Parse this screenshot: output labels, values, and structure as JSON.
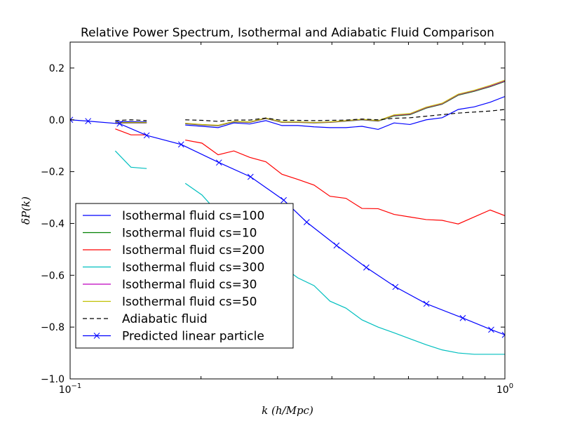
{
  "chart_data": {
    "type": "line",
    "title": "Relative Power Spectrum, Isothermal and Adiabatic Fluid Comparison",
    "xlabel": "k (h/Mpc)",
    "ylabel": "δP(k)",
    "xscale": "log",
    "xlim": [
      0.1,
      1.0
    ],
    "ylim": [
      -1.0,
      0.3
    ],
    "xticks": [
      {
        "value": 0.1,
        "base": "10",
        "exp": "−1"
      },
      {
        "value": 1.0,
        "base": "10",
        "exp": "0"
      }
    ],
    "yticks": [
      {
        "value": 0.2,
        "label": "0.2"
      },
      {
        "value": 0.0,
        "label": "0.0"
      },
      {
        "value": -0.2,
        "label": "−0.2"
      },
      {
        "value": -0.4,
        "label": "−0.4"
      },
      {
        "value": -0.6,
        "label": "−0.6"
      },
      {
        "value": -0.8,
        "label": "−0.8"
      },
      {
        "value": -1.0,
        "label": "−1.0"
      }
    ],
    "grid": false,
    "legend_position": "lower-left",
    "series": [
      {
        "name": "Isothermal fluid cs=100",
        "color": "#0000ff",
        "style": "solid",
        "marker": "none",
        "segments": [
          {
            "x": [
              0.127,
              0.138,
              0.15
            ],
            "y": [
              -0.008,
              -0.007,
              -0.008
            ]
          },
          {
            "x": [
              0.184,
              0.201,
              0.219,
              0.238,
              0.259,
              0.282,
              0.307,
              0.334,
              0.364,
              0.396,
              0.431,
              0.469,
              0.511,
              0.556,
              0.605,
              0.659,
              0.717,
              0.781,
              0.85,
              0.925,
              1.0
            ],
            "y": [
              -0.02,
              -0.025,
              -0.03,
              -0.012,
              -0.016,
              -0.003,
              -0.022,
              -0.022,
              -0.027,
              -0.03,
              -0.03,
              -0.025,
              -0.037,
              -0.012,
              -0.018,
              0.0,
              0.008,
              0.04,
              0.05,
              0.068,
              0.09
            ]
          }
        ]
      },
      {
        "name": "Isothermal fluid cs=10",
        "color": "#008000",
        "style": "solid",
        "marker": "none",
        "segments": [
          {
            "x": [
              0.127,
              0.138,
              0.15
            ],
            "y": [
              -0.013,
              -0.012,
              -0.012
            ]
          },
          {
            "x": [
              0.184,
              0.201,
              0.219,
              0.238,
              0.259,
              0.282,
              0.307,
              0.334,
              0.364,
              0.396,
              0.431,
              0.469,
              0.511,
              0.556,
              0.605,
              0.659,
              0.717,
              0.781,
              0.85,
              0.925,
              1.0
            ],
            "y": [
              -0.015,
              -0.02,
              -0.023,
              -0.008,
              -0.01,
              0.005,
              -0.01,
              -0.01,
              -0.012,
              -0.01,
              -0.005,
              0.0,
              -0.005,
              0.015,
              0.02,
              0.045,
              0.06,
              0.095,
              0.11,
              0.128,
              0.148
            ]
          }
        ]
      },
      {
        "name": "Isothermal fluid cs=200",
        "color": "#ff0000",
        "style": "solid",
        "marker": "none",
        "segments": [
          {
            "x": [
              0.127,
              0.138,
              0.15
            ],
            "y": [
              -0.035,
              -0.058,
              -0.058
            ]
          },
          {
            "x": [
              0.184,
              0.201,
              0.219,
              0.238,
              0.259,
              0.282,
              0.307,
              0.334,
              0.364,
              0.396,
              0.431,
              0.469,
              0.511,
              0.556,
              0.605,
              0.659,
              0.717,
              0.781,
              0.85,
              0.925,
              1.0
            ],
            "y": [
              -0.078,
              -0.09,
              -0.135,
              -0.12,
              -0.145,
              -0.162,
              -0.21,
              -0.23,
              -0.252,
              -0.295,
              -0.303,
              -0.342,
              -0.343,
              -0.365,
              -0.375,
              -0.385,
              -0.388,
              -0.402,
              -0.375,
              -0.348,
              -0.37
            ]
          }
        ]
      },
      {
        "name": "Isothermal fluid cs=300",
        "color": "#00bfbf",
        "style": "solid",
        "marker": "none",
        "segments": [
          {
            "x": [
              0.127,
              0.138,
              0.15
            ],
            "y": [
              -0.12,
              -0.183,
              -0.188
            ]
          },
          {
            "x": [
              0.184,
              0.201,
              0.219,
              0.238,
              0.259,
              0.282,
              0.307,
              0.334,
              0.364,
              0.396,
              0.431,
              0.469,
              0.511,
              0.556,
              0.605,
              0.659,
              0.717,
              0.781,
              0.85,
              0.925,
              1.0
            ],
            "y": [
              -0.245,
              -0.29,
              -0.36,
              -0.405,
              -0.47,
              -0.52,
              -0.565,
              -0.61,
              -0.64,
              -0.7,
              -0.727,
              -0.772,
              -0.8,
              -0.822,
              -0.845,
              -0.868,
              -0.888,
              -0.9,
              -0.905,
              -0.905,
              -0.905
            ]
          }
        ]
      },
      {
        "name": "Isothermal fluid cs=30",
        "color": "#bf00bf",
        "style": "solid",
        "marker": "none",
        "segments": [
          {
            "x": [
              0.127,
              0.138,
              0.15
            ],
            "y": [
              -0.012,
              -0.011,
              -0.011
            ]
          },
          {
            "x": [
              0.184,
              0.201,
              0.219,
              0.238,
              0.259,
              0.282,
              0.307,
              0.334,
              0.364,
              0.396,
              0.431,
              0.469,
              0.511,
              0.556,
              0.605,
              0.659,
              0.717,
              0.781,
              0.85,
              0.925,
              1.0
            ],
            "y": [
              -0.014,
              -0.019,
              -0.022,
              -0.007,
              -0.009,
              0.006,
              -0.009,
              -0.009,
              -0.011,
              -0.009,
              -0.004,
              0.001,
              -0.004,
              0.017,
              0.022,
              0.047,
              0.062,
              0.097,
              0.112,
              0.13,
              0.15
            ]
          }
        ]
      },
      {
        "name": "Isothermal fluid cs=50",
        "color": "#bfbf00",
        "style": "solid",
        "marker": "none",
        "segments": [
          {
            "x": [
              0.127,
              0.138,
              0.15
            ],
            "y": [
              -0.011,
              -0.01,
              -0.01
            ]
          },
          {
            "x": [
              0.184,
              0.201,
              0.219,
              0.238,
              0.259,
              0.282,
              0.307,
              0.334,
              0.364,
              0.396,
              0.431,
              0.469,
              0.511,
              0.556,
              0.605,
              0.659,
              0.717,
              0.781,
              0.85,
              0.925,
              1.0
            ],
            "y": [
              -0.013,
              -0.018,
              -0.021,
              -0.006,
              -0.008,
              0.007,
              -0.008,
              -0.008,
              -0.01,
              -0.008,
              -0.003,
              0.002,
              -0.003,
              0.019,
              0.024,
              0.049,
              0.064,
              0.099,
              0.114,
              0.133,
              0.153
            ]
          }
        ]
      },
      {
        "name": "Adiabatic fluid",
        "color": "#000000",
        "style": "dashed",
        "marker": "none",
        "segments": [
          {
            "x": [
              0.127,
              0.138,
              0.15
            ],
            "y": [
              -0.003,
              0.0,
              -0.003
            ]
          },
          {
            "x": [
              0.184,
              0.201,
              0.219,
              0.238,
              0.259,
              0.282,
              0.307,
              0.334,
              0.364,
              0.396,
              0.431,
              0.469,
              0.511,
              0.556,
              0.605,
              0.659,
              0.717,
              0.781,
              0.85,
              0.925,
              1.0
            ],
            "y": [
              0.0,
              -0.002,
              -0.006,
              -0.001,
              -0.001,
              0.007,
              -0.002,
              -0.002,
              -0.003,
              -0.002,
              -0.001,
              0.003,
              0.0,
              0.006,
              0.008,
              0.014,
              0.02,
              0.026,
              0.03,
              0.034,
              0.04
            ]
          }
        ]
      },
      {
        "name": "Predicted linear particle",
        "color": "#0000ff",
        "style": "solid",
        "marker": "x",
        "segments": [
          {
            "x": [
              0.1,
              0.11,
              0.13,
              0.15,
              0.18,
              0.22,
              0.26,
              0.31,
              0.35,
              0.41,
              0.48,
              0.56,
              0.66,
              0.8,
              0.93,
              1.0
            ],
            "y": [
              0.0,
              -0.005,
              -0.015,
              -0.06,
              -0.095,
              -0.165,
              -0.22,
              -0.31,
              -0.395,
              -0.485,
              -0.57,
              -0.645,
              -0.71,
              -0.765,
              -0.81,
              -0.83
            ]
          }
        ]
      }
    ]
  }
}
